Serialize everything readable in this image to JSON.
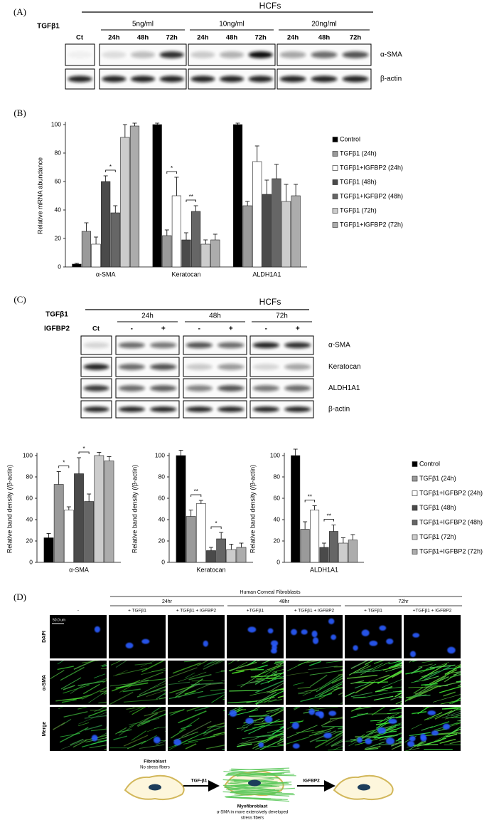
{
  "panel_a": {
    "label": "(A)",
    "group": "HCFs",
    "treatment": "TGFβ1",
    "doses": [
      "5ng/ml",
      "10ng/ml",
      "20ng/ml"
    ],
    "control": "Ct",
    "times": [
      "24h",
      "48h",
      "72h"
    ],
    "rows": [
      "α-SMA",
      "β-actin"
    ]
  },
  "panel_b": {
    "label": "(B)"
  },
  "panel_c": {
    "label": "(C)",
    "group": "HCFs",
    "treatments": [
      "TGFβ1",
      "IGFBP2"
    ],
    "control": "Ct",
    "times": [
      "24h",
      "48h",
      "72h"
    ],
    "signs": [
      "-",
      "+"
    ],
    "rows": [
      "α-SMA",
      "Keratocan",
      "ALDH1A1",
      "β-actin"
    ]
  },
  "chart_data": [
    {
      "type": "bar",
      "ylabel": "Relative mRNA abundance",
      "categories": [
        "α-SMA",
        "Keratocan",
        "ALDH1A1"
      ],
      "ylim": [
        0,
        100
      ],
      "yticks": [
        0,
        20,
        40,
        60,
        80,
        100
      ],
      "series": [
        {
          "name": "Control",
          "color": "#000000",
          "values": [
            2,
            100,
            100
          ],
          "errors": [
            0.5,
            1,
            1
          ]
        },
        {
          "name": "TGFβ1 (24h)",
          "color": "#9a9a9a",
          "values": [
            25,
            22,
            43
          ],
          "errors": [
            6,
            4,
            3
          ]
        },
        {
          "name": "TGFβ1+IGFBP2 (24h)",
          "color": "#ffffff",
          "values": [
            16,
            50,
            74
          ],
          "errors": [
            5,
            13,
            11
          ]
        },
        {
          "name": "TGFβ1 (48h)",
          "color": "#4a4a4a",
          "values": [
            60,
            19,
            51
          ],
          "errors": [
            4,
            5,
            10
          ]
        },
        {
          "name": "TGFβ1+IGFBP2 (48h)",
          "color": "#666666",
          "values": [
            38,
            39,
            62
          ],
          "errors": [
            5,
            4,
            10
          ]
        },
        {
          "name": "TGFβ1 (72h)",
          "color": "#cccccc",
          "values": [
            91,
            16,
            46
          ],
          "errors": [
            9,
            3,
            12
          ]
        },
        {
          "name": "TGFβ1+IGFBP2 (72h)",
          "color": "#acacac",
          "values": [
            99,
            19,
            50
          ],
          "errors": [
            2,
            4,
            8
          ]
        }
      ],
      "annotations": [
        {
          "text": "*",
          "category": 0,
          "series": [
            3,
            4
          ]
        },
        {
          "text": "*",
          "category": 1,
          "series": [
            1,
            2
          ]
        },
        {
          "text": "**",
          "category": 1,
          "series": [
            3,
            4
          ]
        }
      ]
    },
    {
      "type": "bar",
      "ylabel": "Relative band density (/β-actin)",
      "categories": [
        "α-SMA",
        "Keratocan",
        "ALDH1A1"
      ],
      "ylim": [
        0,
        100
      ],
      "yticks": [
        0,
        20,
        40,
        60,
        80,
        100
      ],
      "series": [
        {
          "name": "Control",
          "color": "#000000",
          "values": [
            23,
            100,
            100
          ],
          "errors": [
            4,
            5,
            6
          ]
        },
        {
          "name": "TGFβ1 (24h)",
          "color": "#9a9a9a",
          "values": [
            73,
            43,
            31
          ],
          "errors": [
            12,
            6,
            7
          ]
        },
        {
          "name": "TGFβ1+IGFBP2 (24h)",
          "color": "#ffffff",
          "values": [
            49,
            55,
            49
          ],
          "errors": [
            3,
            3,
            4
          ]
        },
        {
          "name": "TGFβ1 (48h)",
          "color": "#4a4a4a",
          "values": [
            83,
            11,
            14
          ],
          "errors": [
            15,
            3,
            4
          ]
        },
        {
          "name": "TGFβ1+IGFBP2 (48h)",
          "color": "#666666",
          "values": [
            57,
            22,
            29
          ],
          "errors": [
            7,
            6,
            6
          ]
        },
        {
          "name": "TGFβ1 (72h)",
          "color": "#cccccc",
          "values": [
            100,
            12,
            18
          ],
          "errors": [
            3,
            5,
            5
          ]
        },
        {
          "name": "TGFβ1+IGFBP2 (72h)",
          "color": "#acacac",
          "values": [
            95,
            14,
            21
          ],
          "errors": [
            4,
            4,
            5
          ]
        }
      ],
      "annotations": [
        {
          "text": "*",
          "category": 0,
          "series": [
            1,
            2
          ]
        },
        {
          "text": "*",
          "category": 0,
          "series": [
            3,
            4
          ]
        },
        {
          "text": "**",
          "category": 1,
          "series": [
            1,
            2
          ]
        },
        {
          "text": "*",
          "category": 1,
          "series": [
            3,
            4
          ]
        },
        {
          "text": "**",
          "category": 2,
          "series": [
            1,
            2
          ]
        },
        {
          "text": "**",
          "category": 2,
          "series": [
            3,
            4
          ]
        }
      ]
    }
  ],
  "panel_d": {
    "label": "(D)",
    "title": "Human Corneal Fibroblasts",
    "times": [
      "24hr",
      "48hr",
      "72hr"
    ],
    "columns": [
      "-",
      "+ TGFβ1",
      "+ TGFβ1 + IGFBP2",
      "+TGFβ1",
      "+ TGFβ1 +  IGFBP2",
      "+ TGFβ1",
      "+TGFβ1 + IGFBP2"
    ],
    "rows": [
      "DAPI",
      "α-SMA",
      "Merge"
    ],
    "scale_bar": "50.0 um",
    "schematic": {
      "fibroblast": "Fibroblast",
      "fibroblast_note": "No stress fibers",
      "step1": "TGF-β1",
      "myofibroblast": "Myofibroblast",
      "myofibroblast_note": [
        "α-SMA in more extensively developed",
        "stress fibers"
      ],
      "step2": "IGFBP2"
    }
  }
}
